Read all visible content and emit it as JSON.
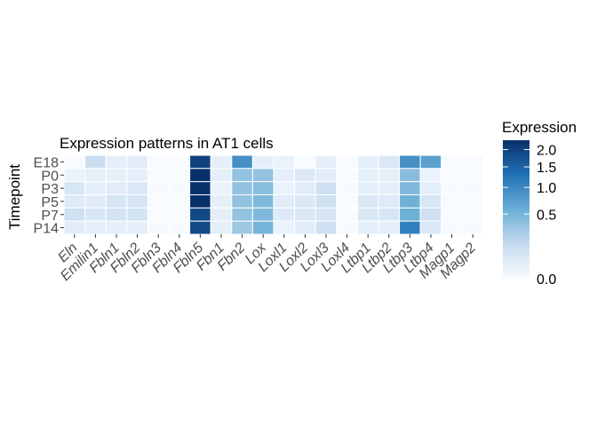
{
  "chart_data": {
    "type": "heatmap",
    "title": "Expression patterns in AT1 cells",
    "ylabel": "Timepoint",
    "xlabel": "",
    "x_categories": [
      "Eln",
      "Emilin1",
      "Fbln1",
      "Fbln2",
      "Fbln3",
      "Fbln4",
      "Fbln5",
      "Fbn1",
      "Fbn2",
      "Lox",
      "Loxl1",
      "Loxl2",
      "Loxl3",
      "Loxl4",
      "Ltbp1",
      "Ltbp2",
      "Ltbp3",
      "Ltbp4",
      "Magp1",
      "Magp2"
    ],
    "y_categories": [
      "E18",
      "P0",
      "P3",
      "P5",
      "P7",
      "P14"
    ],
    "values": [
      [
        0.0,
        0.12,
        0.02,
        0.03,
        0.0,
        0.0,
        2.0,
        0.02,
        0.9,
        0.02,
        0.01,
        0.0,
        0.02,
        0.0,
        0.02,
        0.05,
        0.9,
        0.7,
        0.0,
        0.0
      ],
      [
        0.01,
        0.02,
        0.02,
        0.02,
        0.0,
        0.0,
        2.3,
        0.02,
        0.35,
        0.35,
        0.02,
        0.05,
        0.03,
        0.0,
        0.02,
        0.02,
        0.4,
        0.01,
        0.0,
        0.0
      ],
      [
        0.06,
        0.02,
        0.03,
        0.05,
        0.0,
        0.0,
        2.3,
        0.01,
        0.35,
        0.4,
        0.01,
        0.03,
        0.1,
        0.0,
        0.02,
        0.02,
        0.45,
        0.02,
        0.0,
        0.0
      ],
      [
        0.04,
        0.03,
        0.07,
        0.07,
        0.0,
        0.0,
        2.3,
        0.02,
        0.35,
        0.45,
        0.03,
        0.05,
        0.1,
        0.0,
        0.05,
        0.04,
        0.55,
        0.06,
        0.0,
        0.0
      ],
      [
        0.1,
        0.06,
        0.08,
        0.08,
        0.0,
        0.0,
        1.9,
        0.02,
        0.35,
        0.45,
        0.04,
        0.05,
        0.07,
        0.0,
        0.05,
        0.06,
        0.55,
        0.1,
        0.0,
        0.0
      ],
      [
        0.03,
        0.02,
        0.02,
        0.02,
        0.0,
        0.0,
        1.9,
        0.02,
        0.3,
        0.5,
        0.01,
        0.03,
        0.1,
        0.0,
        0.02,
        0.02,
        1.1,
        0.05,
        0.0,
        0.0
      ]
    ],
    "legend": {
      "title": "Expression",
      "ticks": [
        0.0,
        0.5,
        1.0,
        1.5,
        2.0
      ],
      "tick_labels": [
        "0.0",
        "0.5",
        "1.0",
        "1.5",
        "2.0"
      ],
      "range": [
        0.0,
        2.3
      ],
      "scale": "sqrt",
      "colors": [
        "#f7fbff",
        "#c6dbef",
        "#6baed6",
        "#2171b5",
        "#08306b"
      ],
      "placement": "right"
    },
    "panel_background": "#ebf1fb"
  }
}
